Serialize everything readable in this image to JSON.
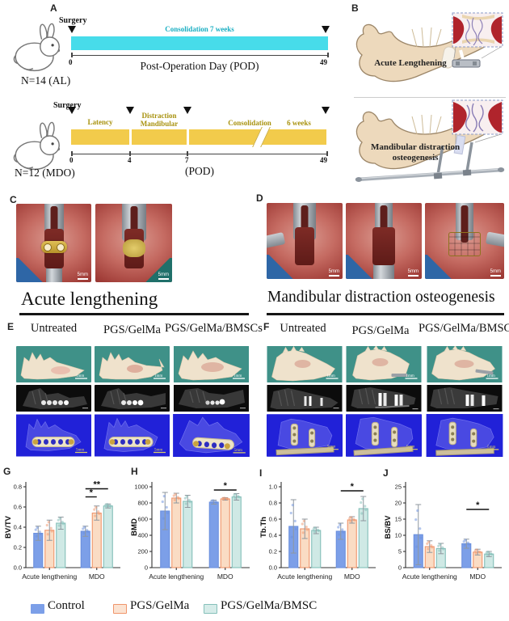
{
  "panel_letters": {
    "a": "A",
    "b": "B",
    "c": "C",
    "d": "D",
    "e": "E",
    "f": "F",
    "g": "G",
    "h": "H",
    "i": "I",
    "j": "J"
  },
  "panel_a": {
    "timeline1": {
      "surgery_label": "Surgery",
      "phase_label": "Consolidation 7 weeks",
      "ticks": [
        "0",
        "49"
      ],
      "axis_title": "Post-Operation Day  (POD)",
      "n_label": "N=14  (AL)"
    },
    "timeline2": {
      "surgery_label": "Surgery",
      "phase_labels": {
        "latency": "Latency",
        "distraction_line1": "Distraction",
        "distraction_line2": "Mandibular",
        "consolidation": "Consolidation",
        "weeks": "6 weeks"
      },
      "ticks": [
        "0",
        "4",
        "7",
        "49"
      ],
      "axis_title": "(POD)",
      "n_label": "N=12  (MDO)"
    }
  },
  "panel_b": {
    "acute_label": "Acute Lengthening",
    "mdo_label_line1": "Mandibular distraction",
    "mdo_label_line2": "osteogenesis"
  },
  "panel_c": {
    "caption": "Acute lengthening",
    "scale": "5mm"
  },
  "panel_d": {
    "caption": "Mandibular distraction osteogenesis",
    "scale": "5mm"
  },
  "panel_e": {
    "columns": [
      "Untreated",
      "PGS/GelMa",
      "PGS/GelMa/BMSCs"
    ],
    "scale_specimen": "1mm",
    "scale_ct": "5mm"
  },
  "panel_f": {
    "columns": [
      "Untreated",
      "PGS/GelMa",
      "PGS/GelMa/BMSCs"
    ],
    "scale_specimen": "1mm",
    "scale_ct": "5mm"
  },
  "chart_data": [
    {
      "panel": "G",
      "type": "bar",
      "ylabel": "BV/TV",
      "ylim": [
        0,
        0.8
      ],
      "yticks": [
        "0.0",
        "0.2",
        "0.4",
        "0.6",
        "0.8"
      ],
      "categories": [
        "Acute lengthening",
        "MDO"
      ],
      "series": [
        {
          "name": "Control",
          "fill": "#7C9FE8",
          "border": "#6A8FDE",
          "values": [
            0.34,
            0.36
          ],
          "errors": [
            0.07,
            0.05
          ]
        },
        {
          "name": "PGS/GelMa",
          "fill": "#FADCC4",
          "border": "#F0956B",
          "values": [
            0.37,
            0.54
          ],
          "errors": [
            0.1,
            0.07
          ]
        },
        {
          "name": "PGS/GelMa/BMSC",
          "fill": "#CFE9E5",
          "border": "#82BEB8",
          "values": [
            0.44,
            0.61
          ],
          "errors": [
            0.06,
            0.02
          ]
        }
      ],
      "significance": [
        {
          "group": 1,
          "from": 0,
          "to": 1,
          "label": "*",
          "y": 0.7
        },
        {
          "group": 1,
          "from": 0,
          "to": 2,
          "label": "**",
          "y": 0.78
        }
      ]
    },
    {
      "panel": "H",
      "type": "bar",
      "ylabel": "BMD",
      "ylim": [
        0,
        1000
      ],
      "yticks": [
        "0",
        "200",
        "400",
        "600",
        "800",
        "1000"
      ],
      "categories": [
        "Acute lengthening",
        "MDO"
      ],
      "series": [
        {
          "name": "Control",
          "fill": "#7C9FE8",
          "border": "#6A8FDE",
          "values": [
            700,
            810
          ],
          "errors": [
            230,
            25
          ]
        },
        {
          "name": "PGS/GelMa",
          "fill": "#FADCC4",
          "border": "#F0956B",
          "values": [
            860,
            850
          ],
          "errors": [
            60,
            15
          ]
        },
        {
          "name": "PGS/GelMa/BMSC",
          "fill": "#CFE9E5",
          "border": "#82BEB8",
          "values": [
            820,
            875
          ],
          "errors": [
            75,
            40
          ]
        }
      ],
      "significance": [
        {
          "group": 1,
          "from": 0,
          "to": 2,
          "label": "*",
          "y": 960
        }
      ]
    },
    {
      "panel": "I",
      "type": "bar",
      "ylabel": "Tb.Th",
      "ylim": [
        0,
        1.0
      ],
      "yticks": [
        "0.0",
        "0.2",
        "0.4",
        "0.6",
        "0.8",
        "1.0"
      ],
      "categories": [
        "Acute lengthening",
        "MDO"
      ],
      "series": [
        {
          "name": "Control",
          "fill": "#7C9FE8",
          "border": "#6A8FDE",
          "values": [
            0.51,
            0.45
          ],
          "errors": [
            0.33,
            0.1
          ]
        },
        {
          "name": "PGS/GelMa",
          "fill": "#FADCC4",
          "border": "#F0956B",
          "values": [
            0.48,
            0.59
          ],
          "errors": [
            0.12,
            0.04
          ]
        },
        {
          "name": "PGS/GelMa/BMSC",
          "fill": "#CFE9E5",
          "border": "#82BEB8",
          "values": [
            0.46,
            0.73
          ],
          "errors": [
            0.04,
            0.15
          ]
        }
      ],
      "significance": [
        {
          "group": 1,
          "from": 0,
          "to": 2,
          "label": "*",
          "y": 0.95
        }
      ]
    },
    {
      "panel": "J",
      "type": "bar",
      "ylabel": "BS/BV",
      "ylim": [
        0,
        25
      ],
      "yticks": [
        "0",
        "5",
        "10",
        "15",
        "20",
        "25"
      ],
      "categories": [
        "Acute lengthening",
        "MDO"
      ],
      "series": [
        {
          "name": "Control",
          "fill": "#7C9FE8",
          "border": "#6A8FDE",
          "values": [
            10.2,
            7.4
          ],
          "errors": [
            9.3,
            1.4
          ]
        },
        {
          "name": "PGS/GelMa",
          "fill": "#FADCC4",
          "border": "#F0956B",
          "values": [
            6.5,
            4.8
          ],
          "errors": [
            1.8,
            0.9
          ]
        },
        {
          "name": "PGS/GelMa/BMSC",
          "fill": "#CFE9E5",
          "border": "#82BEB8",
          "values": [
            5.9,
            4.2
          ],
          "errors": [
            1.6,
            0.8
          ]
        }
      ],
      "significance": [
        {
          "group": 1,
          "from": 0,
          "to": 2,
          "label": "*",
          "y": 18
        }
      ]
    }
  ],
  "legend": {
    "items": [
      {
        "label": "Control",
        "fill": "#7C9FE8",
        "border": "#7C9FE8"
      },
      {
        "label": "PGS/GelMa",
        "fill": "#FBE3D2",
        "border": "#F0956B"
      },
      {
        "label": "PGS/GelMa/BMSC",
        "fill": "#D6ECE9",
        "border": "#85C0BA"
      }
    ]
  }
}
